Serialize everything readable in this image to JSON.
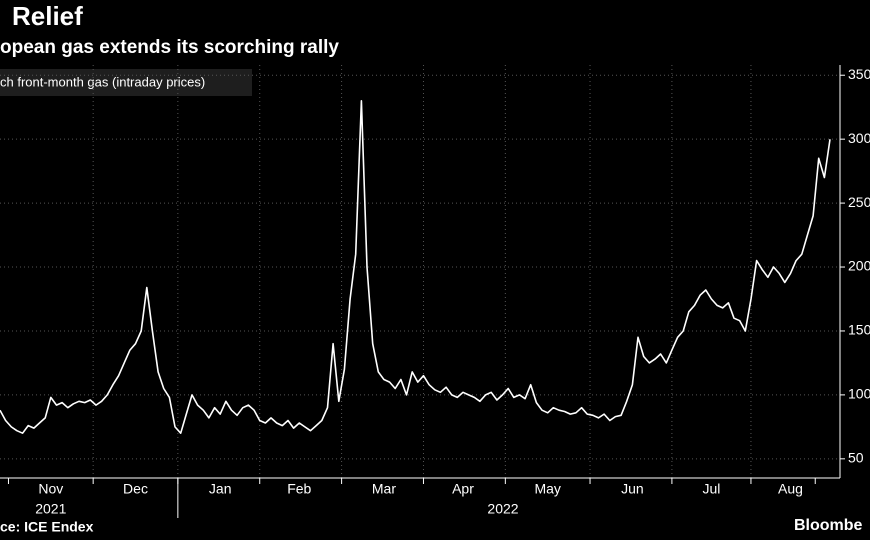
{
  "chart_data": {
    "type": "line",
    "title": "Relief",
    "subtitle": "opean gas extends its scorching rally",
    "series": [
      {
        "name": "ch front-month gas (intraday prices)",
        "color": "#ffffff",
        "values": [
          88,
          80,
          75,
          72,
          70,
          76,
          74,
          78,
          82,
          98,
          92,
          94,
          90,
          93,
          95,
          94,
          96,
          92,
          95,
          100,
          108,
          115,
          125,
          135,
          140,
          150,
          184,
          150,
          118,
          105,
          98,
          75,
          70,
          85,
          100,
          92,
          88,
          82,
          90,
          85,
          95,
          88,
          84,
          90,
          92,
          88,
          80,
          78,
          82,
          78,
          76,
          80,
          74,
          78,
          75,
          72,
          76,
          80,
          90,
          140,
          95,
          120,
          175,
          210,
          330,
          200,
          140,
          118,
          112,
          110,
          105,
          112,
          100,
          118,
          110,
          115,
          108,
          104,
          102,
          106,
          100,
          98,
          102,
          100,
          98,
          95,
          100,
          102,
          96,
          100,
          105,
          98,
          100,
          97,
          108,
          94,
          88,
          86,
          90,
          88,
          87,
          85,
          86,
          90,
          85,
          84,
          82,
          85,
          80,
          83,
          84,
          95,
          108,
          145,
          130,
          125,
          128,
          132,
          125,
          135,
          145,
          150,
          165,
          170,
          178,
          182,
          175,
          170,
          168,
          172,
          160,
          158,
          150,
          175,
          205,
          198,
          192,
          200,
          195,
          188,
          195,
          205,
          210,
          225,
          240,
          285,
          270,
          300
        ]
      }
    ],
    "xticks": [
      {
        "value": 9,
        "label": "Nov"
      },
      {
        "value": 24,
        "label": "Dec"
      },
      {
        "value": 39,
        "label": "Jan"
      },
      {
        "value": 53,
        "label": "Feb"
      },
      {
        "value": 68,
        "label": "Mar"
      },
      {
        "value": 82,
        "label": "Apr"
      },
      {
        "value": 97,
        "label": "May"
      },
      {
        "value": 112,
        "label": "Jun"
      },
      {
        "value": 126,
        "label": "Jul"
      },
      {
        "value": 140,
        "label": "Aug"
      }
    ],
    "year_labels": [
      "2021",
      "2022"
    ],
    "ylim": [
      35,
      358
    ],
    "yticks": [
      50,
      100,
      150,
      200,
      250,
      300,
      350
    ],
    "grid": true,
    "source": "ce: ICE Endex",
    "brand": "Bloombe"
  }
}
